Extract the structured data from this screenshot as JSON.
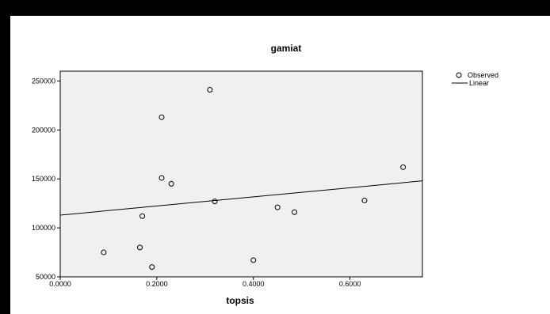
{
  "chart_data": {
    "type": "scatter",
    "title": "gamiat",
    "xlabel": "topsis",
    "ylabel": "",
    "xlim": [
      0.0,
      0.75
    ],
    "ylim": [
      50000,
      260000
    ],
    "x_ticks": [
      {
        "value": 0.0,
        "label": "0.0000"
      },
      {
        "value": 0.2,
        "label": "0.2000"
      },
      {
        "value": 0.4,
        "label": "0.4000"
      },
      {
        "value": 0.6,
        "label": "0.6000"
      }
    ],
    "y_ticks": [
      {
        "value": 50000,
        "label": "50000"
      },
      {
        "value": 100000,
        "label": "100000"
      },
      {
        "value": 150000,
        "label": "150000"
      },
      {
        "value": 200000,
        "label": "200000"
      },
      {
        "value": 250000,
        "label": "250000"
      }
    ],
    "grid": false,
    "legend_position": "top-right",
    "series": [
      {
        "name": "Observed",
        "type": "scatter",
        "marker": "open-circle",
        "points": [
          {
            "x": 0.09,
            "y": 75000
          },
          {
            "x": 0.165,
            "y": 80000
          },
          {
            "x": 0.17,
            "y": 112000
          },
          {
            "x": 0.19,
            "y": 60000
          },
          {
            "x": 0.21,
            "y": 213000
          },
          {
            "x": 0.21,
            "y": 151000
          },
          {
            "x": 0.23,
            "y": 145000
          },
          {
            "x": 0.31,
            "y": 241000
          },
          {
            "x": 0.32,
            "y": 127000
          },
          {
            "x": 0.4,
            "y": 67000
          },
          {
            "x": 0.45,
            "y": 121000
          },
          {
            "x": 0.485,
            "y": 116000
          },
          {
            "x": 0.63,
            "y": 128000
          },
          {
            "x": 0.71,
            "y": 162000
          }
        ]
      },
      {
        "name": "Linear",
        "type": "line",
        "points": [
          {
            "x": 0.0,
            "y": 113000
          },
          {
            "x": 0.75,
            "y": 148000
          }
        ]
      }
    ],
    "colors": {
      "plot_background": "#f0f0f0",
      "marker": "#000000",
      "line": "#000000",
      "frame": "#000000"
    }
  }
}
